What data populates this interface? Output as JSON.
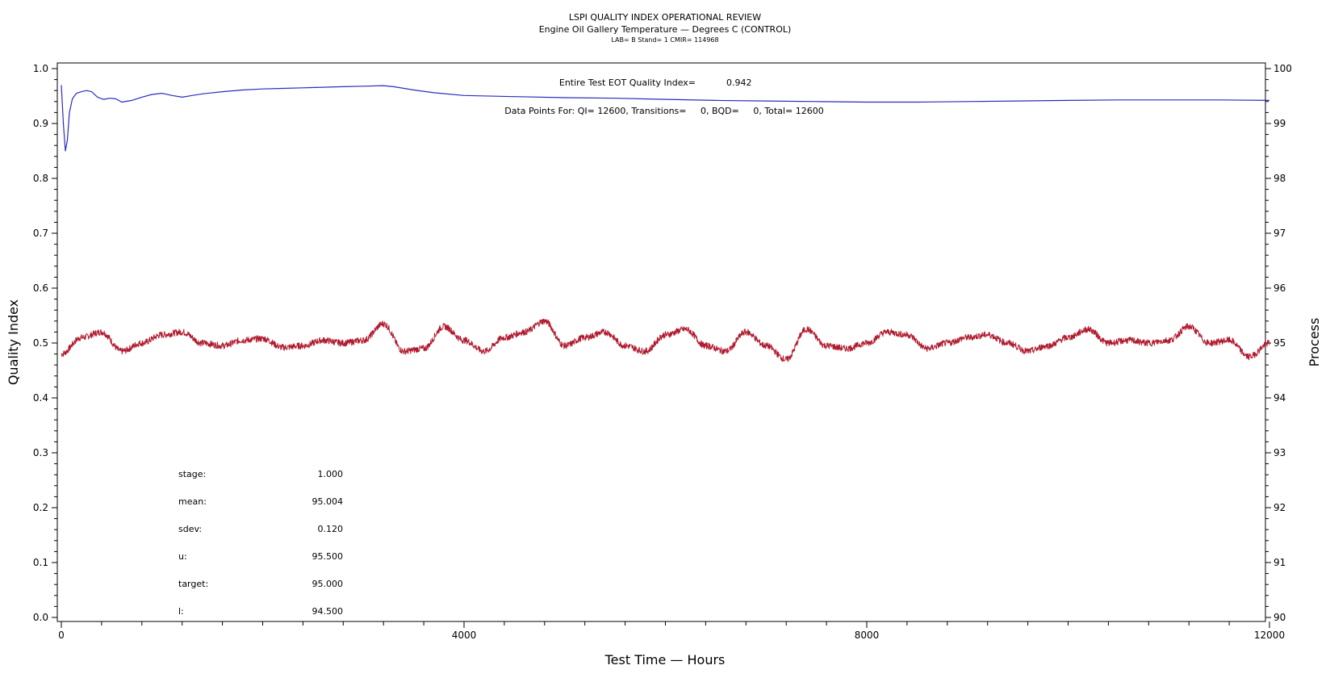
{
  "chart_data": {
    "type": "line",
    "title": "LSPI QUALITY INDEX OPERATIONAL REVIEW",
    "subtitle": "Engine Oil Gallery Temperature — Degrees C (CONTROL)",
    "sub_subtitle": "LAB= B Stand= 1 CMIR= 114968",
    "xlabel": "Test Time — Hours",
    "ylabel_left": "Quality Index",
    "ylabel_right": "Process",
    "xlim": [
      0,
      12000
    ],
    "ylim_left": [
      0.0,
      1.0
    ],
    "ylim_right": [
      90,
      100
    ],
    "x_ticks": [
      "0",
      "4000",
      "8000",
      "12000"
    ],
    "y_left_ticks": [
      "0.0",
      "0.1",
      "0.2",
      "0.3",
      "0.4",
      "0.5",
      "0.6",
      "0.7",
      "0.8",
      "0.9",
      "1.0"
    ],
    "y_right_ticks": [
      "90",
      "91",
      "92",
      "93",
      "94",
      "95",
      "96",
      "97",
      "98",
      "99",
      "100"
    ],
    "annotations": {
      "eot_label": "Entire Test EOT Quality Index=",
      "eot_value": "0.942",
      "data_points": "Data Points For: QI= 12600, Transitions=     0, BQD=     0, Total= 12600"
    },
    "stats": [
      {
        "label": "stage:",
        "value": "1.000"
      },
      {
        "label": "mean:",
        "value": "95.004"
      },
      {
        "label": "sdev:",
        "value": "0.120"
      },
      {
        "label": "u:",
        "value": "95.500"
      },
      {
        "label": "target:",
        "value": "95.000"
      },
      {
        "label": "l:",
        "value": "94.500"
      }
    ],
    "series": [
      {
        "axis": "left",
        "color": "#2a2ac0",
        "x": [
          0,
          20,
          40,
          60,
          80,
          110,
          150,
          200,
          250,
          300,
          360,
          420,
          480,
          540,
          600,
          700,
          800,
          900,
          1000,
          1100,
          1200,
          1300,
          1400,
          1600,
          1800,
          2000,
          2200,
          2400,
          2600,
          2800,
          3000,
          3200,
          3300,
          3500,
          3700,
          4000,
          4500,
          5000,
          5500,
          6000,
          6500,
          7000,
          7500,
          8000,
          8500,
          9000,
          9500,
          10000,
          10500,
          11000,
          11500,
          12000
        ],
        "values": [
          0.97,
          0.9,
          0.85,
          0.87,
          0.92,
          0.945,
          0.955,
          0.958,
          0.96,
          0.958,
          0.948,
          0.944,
          0.946,
          0.945,
          0.939,
          0.942,
          0.948,
          0.953,
          0.955,
          0.951,
          0.948,
          0.951,
          0.954,
          0.958,
          0.961,
          0.963,
          0.964,
          0.965,
          0.966,
          0.967,
          0.968,
          0.969,
          0.967,
          0.961,
          0.956,
          0.951,
          0.949,
          0.947,
          0.946,
          0.944,
          0.942,
          0.941,
          0.94,
          0.939,
          0.939,
          0.94,
          0.941,
          0.942,
          0.943,
          0.943,
          0.943,
          0.942
        ]
      },
      {
        "axis": "right",
        "color": "#b01a2e",
        "x": [
          0,
          200,
          400,
          600,
          800,
          1000,
          1200,
          1400,
          1600,
          1800,
          2000,
          2200,
          2400,
          2600,
          2800,
          3000,
          3200,
          3400,
          3600,
          3800,
          4000,
          4200,
          4400,
          4600,
          4800,
          5000,
          5200,
          5400,
          5600,
          5800,
          6000,
          6200,
          6400,
          6600,
          6800,
          7000,
          7200,
          7400,
          7600,
          7800,
          8000,
          8200,
          8400,
          8600,
          8800,
          9000,
          9200,
          9400,
          9600,
          9800,
          10000,
          10200,
          10400,
          10600,
          10800,
          11000,
          11200,
          11400,
          11600,
          11800,
          12000
        ],
        "values": [
          94.8,
          95.1,
          95.2,
          94.85,
          95.0,
          95.15,
          95.2,
          95.0,
          94.95,
          95.05,
          95.08,
          94.92,
          94.95,
          95.05,
          95.0,
          95.05,
          95.35,
          94.85,
          94.9,
          95.3,
          95.05,
          94.85,
          95.1,
          95.2,
          95.4,
          94.95,
          95.1,
          95.2,
          94.95,
          94.85,
          95.15,
          95.25,
          94.95,
          94.85,
          95.2,
          94.95,
          94.7,
          95.25,
          94.95,
          94.9,
          95.0,
          95.2,
          95.15,
          94.9,
          95.0,
          95.1,
          95.15,
          95.0,
          94.85,
          94.95,
          95.1,
          95.25,
          95.0,
          95.05,
          95.0,
          95.05,
          95.3,
          95.0,
          95.05,
          94.75,
          95.0
        ]
      }
    ]
  }
}
